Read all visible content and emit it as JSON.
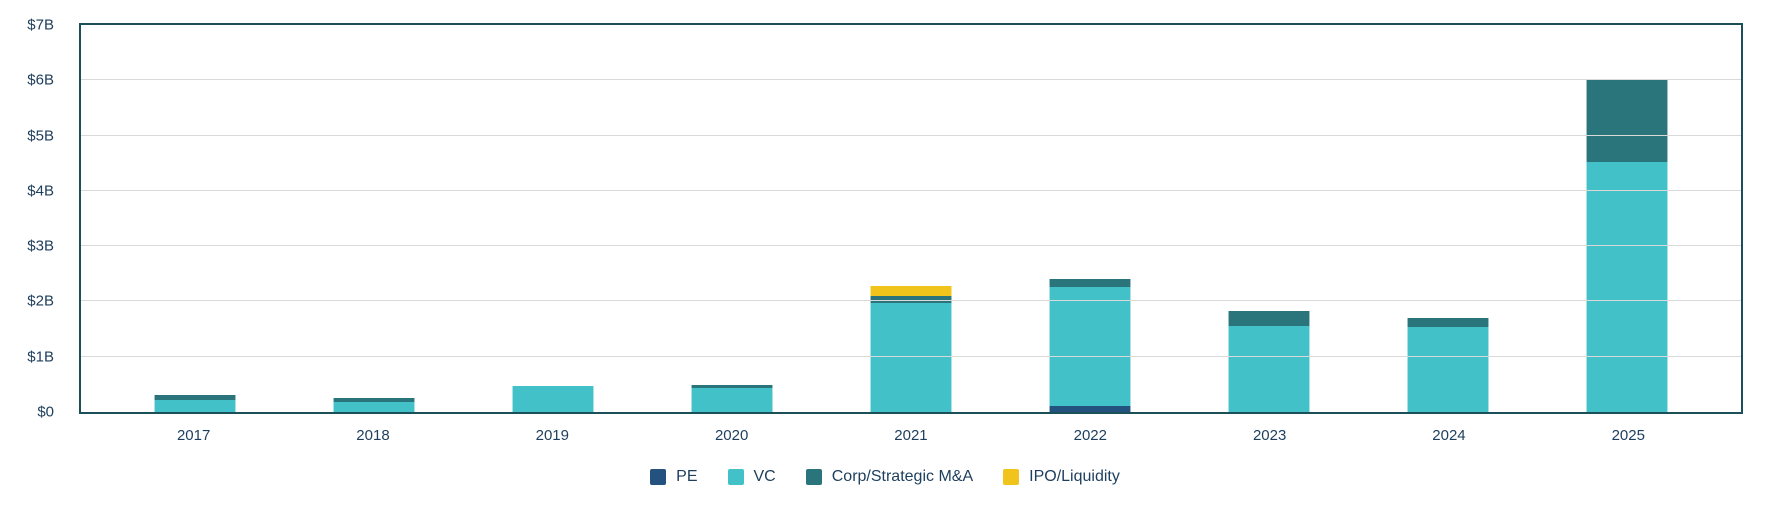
{
  "chart_data": {
    "type": "bar",
    "stacked": true,
    "title": "",
    "xlabel": "",
    "ylabel": "",
    "ylim": [
      0,
      7
    ],
    "grid": true,
    "legend_position": "bottom",
    "y_ticks": [
      {
        "value": 0,
        "label": "$0"
      },
      {
        "value": 1,
        "label": "$1B"
      },
      {
        "value": 2,
        "label": "$2B"
      },
      {
        "value": 3,
        "label": "$3B"
      },
      {
        "value": 4,
        "label": "$4B"
      },
      {
        "value": 5,
        "label": "$5B"
      },
      {
        "value": 6,
        "label": "$6B"
      },
      {
        "value": 7,
        "label": "$7B"
      }
    ],
    "categories": [
      "2017",
      "2018",
      "2019",
      "2020",
      "2021",
      "2022",
      "2023",
      "2024",
      "2025"
    ],
    "series": [
      {
        "name": "PE",
        "color": "#24527e",
        "values": [
          0,
          0,
          0,
          0,
          0,
          0.1,
          0,
          0,
          0
        ]
      },
      {
        "name": "VC",
        "color": "#42c1c8",
        "values": [
          0.22,
          0.19,
          0.47,
          0.43,
          1.98,
          2.16,
          1.55,
          1.53,
          4.52
        ]
      },
      {
        "name": "Corp/Strategic M&A",
        "color": "#2a747c",
        "values": [
          0.08,
          0.07,
          0,
          0.05,
          0.11,
          0.14,
          0.27,
          0.17,
          1.48
        ]
      },
      {
        "name": "IPO/Liquidity",
        "color": "#f0c41a",
        "values": [
          0,
          0,
          0,
          0,
          0.19,
          0,
          0,
          0,
          0
        ]
      }
    ]
  },
  "legend": {
    "items": [
      {
        "label": "PE",
        "color": "#24527e"
      },
      {
        "label": "VC",
        "color": "#42c1c8"
      },
      {
        "label": "Corp/Strategic M&A",
        "color": "#2a747c"
      },
      {
        "label": "IPO/Liquidity",
        "color": "#f0c41a"
      }
    ]
  },
  "colors": {
    "background": "#ffffff",
    "border": "#1b5059",
    "gridline": "#d9d9d9",
    "axis_text": "#1d3e5c"
  }
}
